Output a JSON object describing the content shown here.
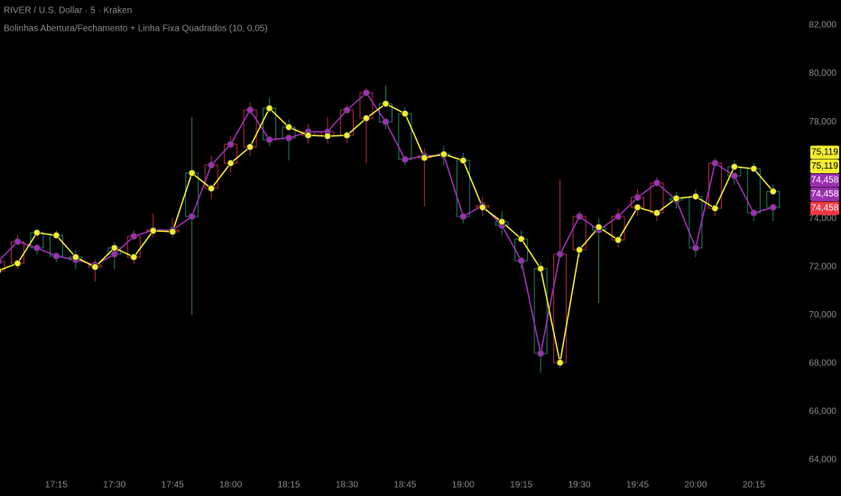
{
  "chart_data": {
    "type": "candlestick",
    "title": "RIVER / U.S. Dollar · 5 · Kraken",
    "subtitle": "Bolinhas Abertura/Fechamento + Linha Fixa Quadrados (10, 0,05)",
    "categories": [
      null,
      null,
      null,
      "17:15",
      null,
      null,
      "17:30",
      null,
      null,
      "17:45",
      null,
      null,
      "18:00",
      null,
      null,
      "18:15",
      null,
      null,
      "18:30",
      null,
      null,
      "18:45",
      null,
      null,
      "19:00",
      null,
      null,
      "19:15",
      null,
      null,
      "19:30",
      null,
      null,
      "19:45",
      null,
      null,
      "20:00",
      null,
      null,
      "20:15",
      null
    ],
    "series": [
      {
        "name": "Abertura",
        "color": "#a030b8",
        "values": [
          72220,
          73040,
          72780,
          72440,
          72290,
          72070,
          72520,
          73260,
          73520,
          73520,
          74080,
          76210,
          77070,
          78490,
          77260,
          77330,
          77590,
          77590,
          78490,
          79200,
          78000,
          76440,
          76590,
          76620,
          74080,
          74530,
          73710,
          72250,
          68410,
          72520,
          74080,
          73520,
          74080,
          74870,
          75470,
          74760,
          72780,
          76290,
          75760,
          74230,
          74458
        ]
      },
      {
        "name": "Fechamento",
        "color": "#f4ee2e",
        "values": [
          71840,
          72140,
          73410,
          73300,
          72400,
          71990,
          72780,
          72400,
          73490,
          73450,
          75880,
          75240,
          76290,
          76960,
          78560,
          77780,
          77440,
          77410,
          77440,
          78150,
          78750,
          78340,
          76510,
          76660,
          76400,
          74460,
          73860,
          73150,
          71920,
          68030,
          72700,
          73640,
          73110,
          74460,
          74230,
          74830,
          74910,
          74420,
          76140,
          76060,
          75119
        ]
      }
    ],
    "high": [
      72500,
      73300,
      73600,
      73500,
      72700,
      72300,
      73000,
      73500,
      74200,
      74000,
      78200,
      76600,
      77400,
      78800,
      79000,
      78100,
      77900,
      78200,
      78700,
      79400,
      79500,
      78600,
      76900,
      77000,
      76700,
      74900,
      74300,
      73500,
      72200,
      75600,
      74300,
      74000,
      74400,
      75200,
      75700,
      75100,
      75200,
      76500,
      76400,
      76300,
      75400
    ],
    "low": [
      71600,
      71900,
      72500,
      72200,
      71900,
      71400,
      71900,
      72100,
      73200,
      73200,
      70000,
      74800,
      75900,
      76600,
      77000,
      76400,
      77100,
      77100,
      77100,
      76300,
      77700,
      76200,
      74500,
      76200,
      73800,
      74100,
      73300,
      71900,
      67600,
      67800,
      72400,
      70500,
      72800,
      74100,
      73900,
      74400,
      72400,
      74100,
      75400,
      73900,
      73900
    ],
    "up_color": "#1f7a5c",
    "down_color": "#b02a36",
    "ylim": [
      64000,
      82000
    ],
    "yticks": [
      {
        "value": 64000,
        "label": "64,000"
      },
      {
        "value": 66000,
        "label": "66,000"
      },
      {
        "value": 68000,
        "label": "68,000"
      },
      {
        "value": 70000,
        "label": "70,000"
      },
      {
        "value": 72000,
        "label": "72,000"
      },
      {
        "value": 74000,
        "label": "74,000"
      },
      {
        "value": 76000,
        "label": "76,000"
      },
      {
        "value": 78000,
        "label": "78,000"
      },
      {
        "value": 80000,
        "label": "80,000"
      },
      {
        "value": 82000,
        "label": "82,000"
      }
    ],
    "price_labels": [
      {
        "value": 75119,
        "label": "75,119",
        "color": "#f4ee2e"
      },
      {
        "value": 75119,
        "label": "75,119",
        "color": "#f4ee2e"
      },
      {
        "value": 74458,
        "label": "74,458",
        "color": "#9c2fb0"
      },
      {
        "value": 74458,
        "label": "74,458",
        "color": "#9c2fb0"
      },
      {
        "value": 74458,
        "label": "74,458",
        "color": "#f23645"
      }
    ],
    "grid": false
  }
}
